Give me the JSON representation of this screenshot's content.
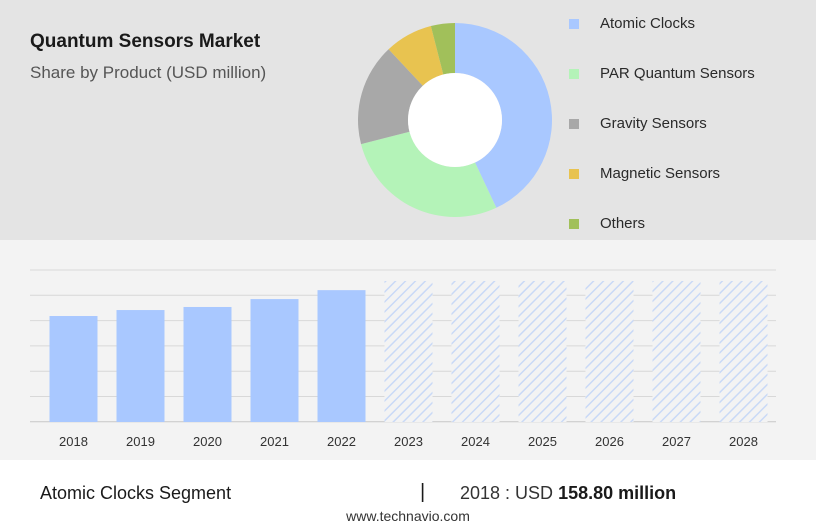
{
  "header": {
    "title": "Quantum Sensors Market",
    "subtitle": "Share by Product (USD million)"
  },
  "chart_data": [
    {
      "type": "pie",
      "style": "donut",
      "categories": [
        "Atomic Clocks",
        "PAR Quantum Sensors",
        "Gravity Sensors",
        "Magnetic Sensors",
        "Others"
      ],
      "values": [
        43,
        28,
        17,
        8,
        4
      ],
      "colors": [
        "#a9c8ff",
        "#b4f3b8",
        "#a8a8a8",
        "#e8c350",
        "#a1c05a"
      ],
      "legend_placement": "right"
    },
    {
      "type": "bar",
      "categories": [
        "2018",
        "2019",
        "2020",
        "2021",
        "2022",
        "2023",
        "2024",
        "2025",
        "2026",
        "2027",
        "2028"
      ],
      "values": [
        158.8,
        170.5,
        176.5,
        192.0,
        209.5,
        null,
        null,
        null,
        null,
        null,
        null
      ],
      "forecast_categories": [
        "2023",
        "2024",
        "2025",
        "2026",
        "2027",
        "2028"
      ],
      "forecast_style": "hatched",
      "bar_color": "#a9c8ff",
      "forecast_color": "#c9d9f6",
      "grid": true,
      "ylim": [
        0,
        300
      ]
    }
  ],
  "footer": {
    "segment_label": "Atomic Clocks Segment",
    "divider": "|",
    "value_prefix": "2018 : USD",
    "value": "158.80 million",
    "source": "www.technavio.com"
  }
}
